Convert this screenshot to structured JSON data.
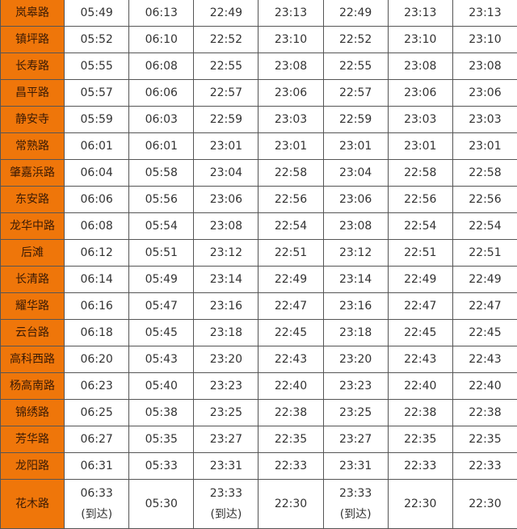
{
  "accent_color": "#ef760a",
  "rows": [
    {
      "station": "岚皋路",
      "times": [
        "05:49",
        "06:13",
        "22:49",
        "23:13",
        "22:49",
        "23:13",
        "23:13"
      ]
    },
    {
      "station": "镇坪路",
      "times": [
        "05:52",
        "06:10",
        "22:52",
        "23:10",
        "22:52",
        "23:10",
        "23:10"
      ]
    },
    {
      "station": "长寿路",
      "times": [
        "05:55",
        "06:08",
        "22:55",
        "23:08",
        "22:55",
        "23:08",
        "23:08"
      ]
    },
    {
      "station": "昌平路",
      "times": [
        "05:57",
        "06:06",
        "22:57",
        "23:06",
        "22:57",
        "23:06",
        "23:06"
      ]
    },
    {
      "station": "静安寺",
      "times": [
        "05:59",
        "06:03",
        "22:59",
        "23:03",
        "22:59",
        "23:03",
        "23:03"
      ]
    },
    {
      "station": "常熟路",
      "times": [
        "06:01",
        "06:01",
        "23:01",
        "23:01",
        "23:01",
        "23:01",
        "23:01"
      ]
    },
    {
      "station": "肇嘉浜路",
      "times": [
        "06:04",
        "05:58",
        "23:04",
        "22:58",
        "23:04",
        "22:58",
        "22:58"
      ]
    },
    {
      "station": "东安路",
      "times": [
        "06:06",
        "05:56",
        "23:06",
        "22:56",
        "23:06",
        "22:56",
        "22:56"
      ]
    },
    {
      "station": "龙华中路",
      "times": [
        "06:08",
        "05:54",
        "23:08",
        "22:54",
        "23:08",
        "22:54",
        "22:54"
      ]
    },
    {
      "station": "后滩",
      "times": [
        "06:12",
        "05:51",
        "23:12",
        "22:51",
        "23:12",
        "22:51",
        "22:51"
      ]
    },
    {
      "station": "长清路",
      "times": [
        "06:14",
        "05:49",
        "23:14",
        "22:49",
        "23:14",
        "22:49",
        "22:49"
      ]
    },
    {
      "station": "耀华路",
      "times": [
        "06:16",
        "05:47",
        "23:16",
        "22:47",
        "23:16",
        "22:47",
        "22:47"
      ]
    },
    {
      "station": "云台路",
      "times": [
        "06:18",
        "05:45",
        "23:18",
        "22:45",
        "23:18",
        "22:45",
        "22:45"
      ]
    },
    {
      "station": "高科西路",
      "times": [
        "06:20",
        "05:43",
        "23:20",
        "22:43",
        "23:20",
        "22:43",
        "22:43"
      ]
    },
    {
      "station": "杨高南路",
      "times": [
        "06:23",
        "05:40",
        "23:23",
        "22:40",
        "23:23",
        "22:40",
        "22:40"
      ]
    },
    {
      "station": "锦绣路",
      "times": [
        "06:25",
        "05:38",
        "23:25",
        "22:38",
        "23:25",
        "22:38",
        "22:38"
      ]
    },
    {
      "station": "芳华路",
      "times": [
        "06:27",
        "05:35",
        "23:27",
        "22:35",
        "23:27",
        "22:35",
        "22:35"
      ]
    },
    {
      "station": "龙阳路",
      "times": [
        "06:31",
        "05:33",
        "23:31",
        "22:33",
        "23:31",
        "22:33",
        "22:33"
      ]
    }
  ],
  "last_row": {
    "station": "花木路",
    "times": [
      "06:33",
      "05:30",
      "23:33",
      "22:30",
      "23:33",
      "22:30",
      "22:30"
    ],
    "notes": [
      "(到达)",
      "",
      "(到达)",
      "",
      "(到达)",
      "",
      ""
    ]
  }
}
